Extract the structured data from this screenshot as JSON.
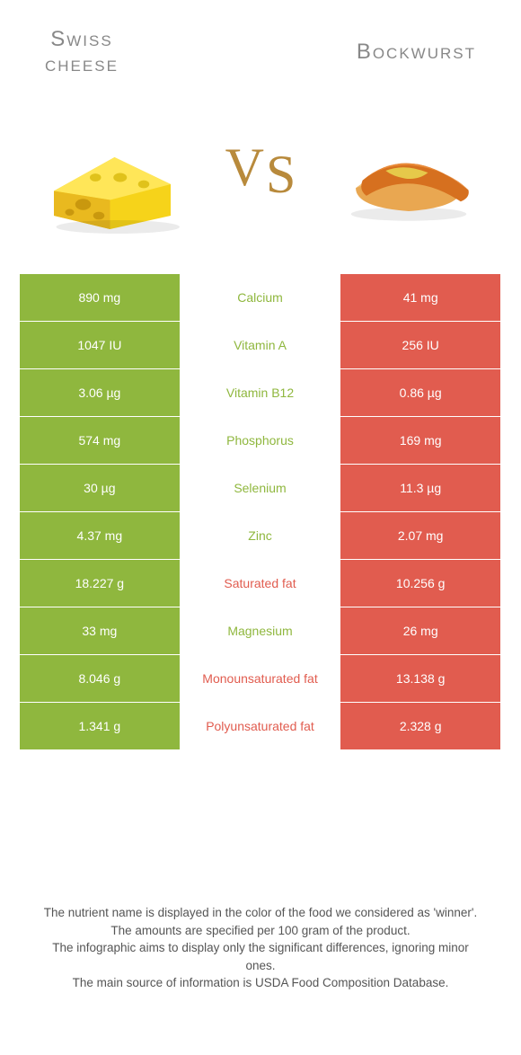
{
  "header": {
    "left_title_line1": "Swiss",
    "left_title_line2": "cheese",
    "right_title": "Bockwurst",
    "vs_v": "V",
    "vs_s": "S"
  },
  "colors": {
    "swiss": "#8fb73e",
    "bockwurst": "#e15c4f",
    "midtext_swiss": "#8fb73e",
    "midtext_bock": "#e15c4f"
  },
  "rows": [
    {
      "left": "890 mg",
      "mid": "Calcium",
      "right": "41 mg",
      "winner": "swiss"
    },
    {
      "left": "1047 IU",
      "mid": "Vitamin A",
      "right": "256 IU",
      "winner": "swiss"
    },
    {
      "left": "3.06 µg",
      "mid": "Vitamin B12",
      "right": "0.86 µg",
      "winner": "swiss"
    },
    {
      "left": "574 mg",
      "mid": "Phosphorus",
      "right": "169 mg",
      "winner": "swiss"
    },
    {
      "left": "30 µg",
      "mid": "Selenium",
      "right": "11.3 µg",
      "winner": "swiss"
    },
    {
      "left": "4.37 mg",
      "mid": "Zinc",
      "right": "2.07 mg",
      "winner": "swiss"
    },
    {
      "left": "18.227 g",
      "mid": "Saturated fat",
      "right": "10.256 g",
      "winner": "bockwurst"
    },
    {
      "left": "33 mg",
      "mid": "Magnesium",
      "right": "26 mg",
      "winner": "swiss"
    },
    {
      "left": "8.046 g",
      "mid": "Monounsaturated fat",
      "right": "13.138 g",
      "winner": "bockwurst"
    },
    {
      "left": "1.341 g",
      "mid": "Polyunsaturated fat",
      "right": "2.328 g",
      "winner": "bockwurst"
    }
  ],
  "footnotes": {
    "l1": "The nutrient name is displayed in the color of the food we considered as 'winner'.",
    "l2": "The amounts are specified per 100 gram of the product.",
    "l3": "The infographic aims to display only the significant differences, ignoring minor ones.",
    "l4": "The main source of information is USDA Food Composition Database."
  }
}
